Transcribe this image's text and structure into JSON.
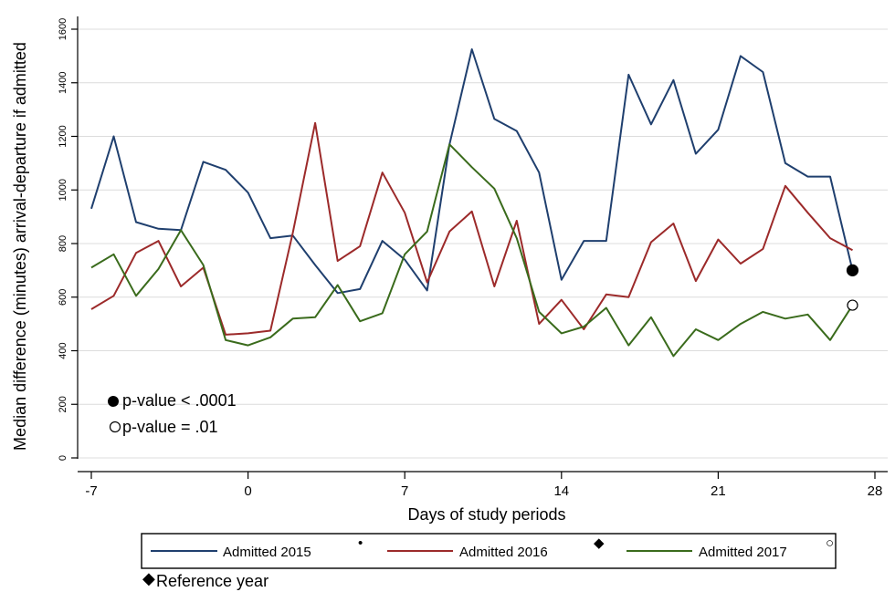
{
  "chart_data": {
    "type": "line",
    "xlabel": "Days of study periods",
    "ylabel": "Median difference (minutes) arrival-departure if admitted",
    "xlim": [
      -7,
      28
    ],
    "ylim": [
      0,
      1600
    ],
    "xticks": [
      "-7",
      "0",
      "7",
      "14",
      "21",
      "28"
    ],
    "yticks": [
      "0",
      "200",
      "400",
      "600",
      "800",
      "1000",
      "1200",
      "1400",
      "1600"
    ],
    "grid": true,
    "x": [
      -7,
      -6,
      -5,
      -4,
      -3,
      -2,
      -1,
      0,
      1,
      2,
      3,
      4,
      5,
      6,
      7,
      8,
      9,
      10,
      11,
      12,
      13,
      14,
      15,
      16,
      17,
      18,
      19,
      20,
      21,
      22,
      23,
      24,
      25,
      26,
      27
    ],
    "series": [
      {
        "name": "Admitted 2015",
        "marker": "•",
        "color": "#1f3f6e",
        "values": [
          930,
          1200,
          880,
          855,
          850,
          1105,
          1075,
          990,
          820,
          830,
          720,
          615,
          630,
          810,
          740,
          625,
          1170,
          1525,
          1265,
          1220,
          1065,
          665,
          810,
          810,
          1430,
          1245,
          1410,
          1135,
          1225,
          1500,
          1440,
          1100,
          1050,
          1050,
          700
        ]
      },
      {
        "name": "Admitted 2016",
        "marker": "◆",
        "color": "#9c2a2a",
        "values": [
          555,
          605,
          765,
          810,
          640,
          710,
          460,
          465,
          475,
          840,
          1250,
          735,
          790,
          1065,
          915,
          655,
          845,
          920,
          640,
          885,
          500,
          590,
          480,
          610,
          600,
          805,
          875,
          660,
          815,
          725,
          780,
          1015,
          915,
          820,
          775
        ]
      },
      {
        "name": "Admitted 2017",
        "marker": "○",
        "color": "#3a6b1c",
        "values": [
          710,
          760,
          605,
          705,
          850,
          720,
          440,
          420,
          450,
          520,
          525,
          645,
          510,
          540,
          760,
          845,
          1170,
          1085,
          1005,
          820,
          545,
          465,
          490,
          560,
          420,
          525,
          380,
          480,
          440,
          500,
          545,
          520,
          535,
          440,
          570
        ]
      }
    ],
    "endpoint_markers": [
      {
        "series": "Admitted 2015",
        "style": "filled",
        "x": 27,
        "y": 700
      },
      {
        "series": "Admitted 2017",
        "style": "hollow",
        "x": 27,
        "y": 570
      }
    ],
    "annotations": [
      {
        "text": "p-value < .0001",
        "marker": "filled"
      },
      {
        "text": "p-value = .01",
        "marker": "hollow"
      }
    ],
    "legend_placement": "bottom",
    "reference_note": "Reference year",
    "reference_symbol": "◆"
  }
}
